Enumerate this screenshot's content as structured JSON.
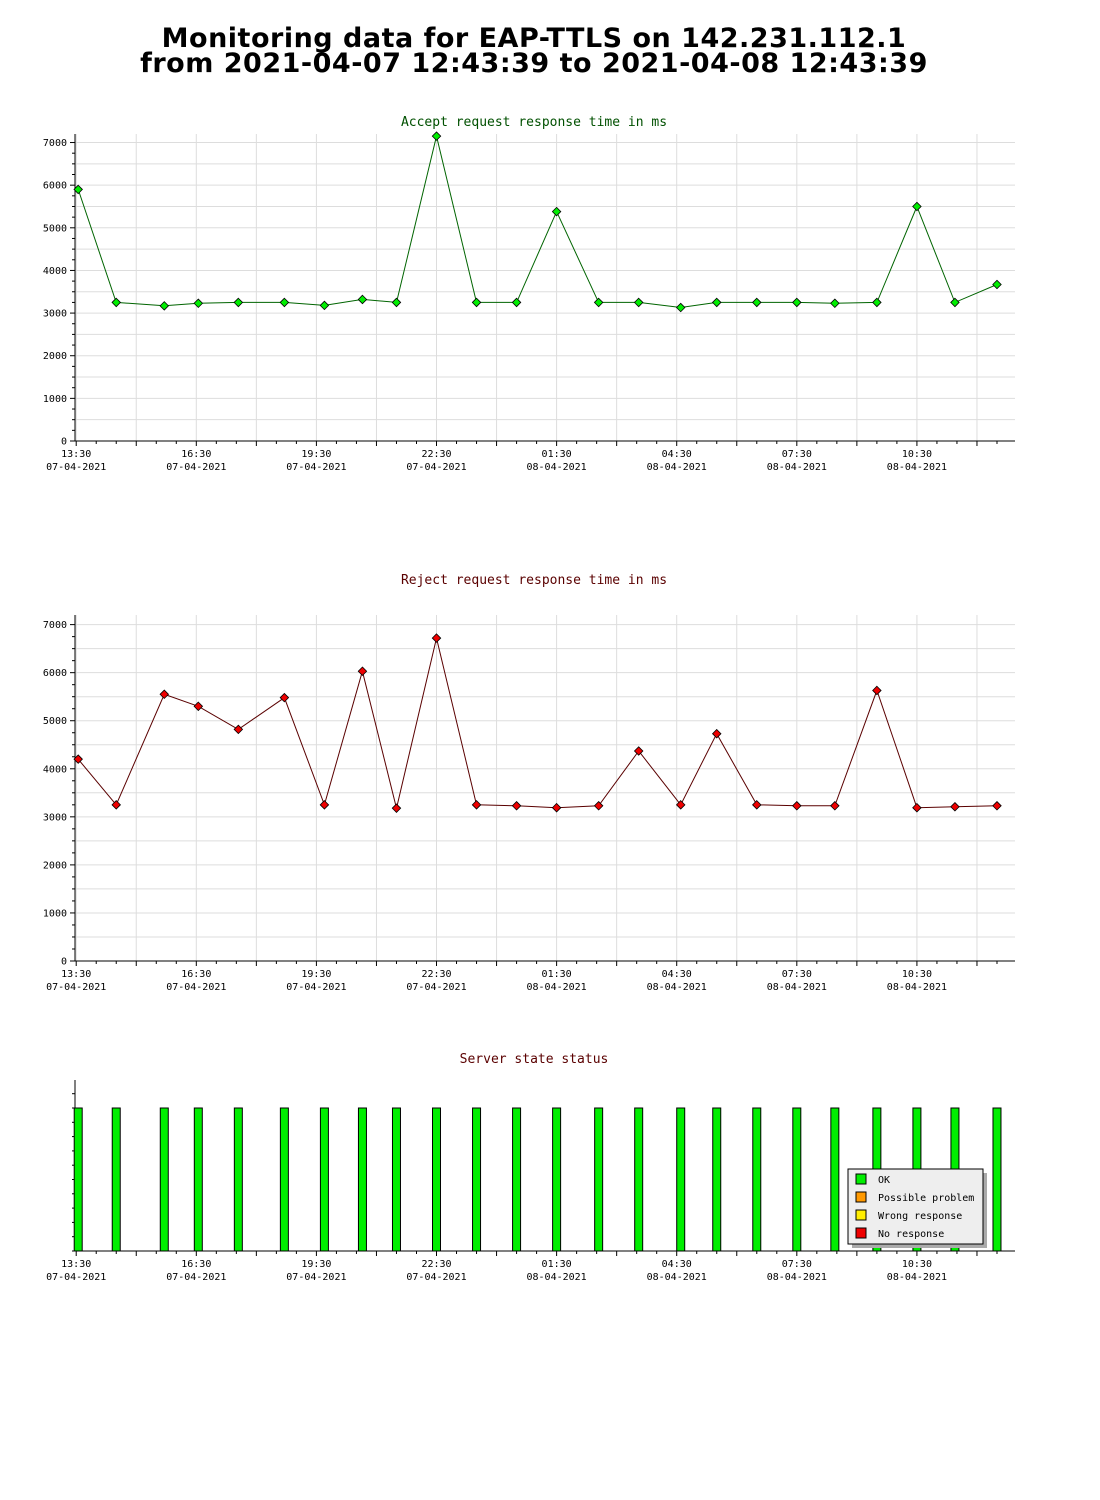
{
  "header": {
    "line1": "Monitoring data for EAP-TTLS on 142.231.112.1",
    "line2": "from 2021-04-07 12:43:39 to 2021-04-08 12:43:39"
  },
  "colors": {
    "accept_line": "#006400",
    "accept_marker": "#00ee00",
    "reject_line": "#5a0000",
    "reject_marker": "#ee0000",
    "status_bar": "#00ee00",
    "grid": "#dddddd",
    "accept_title": "#005000",
    "reject_title": "#5a0000"
  },
  "x_ticks": [
    {
      "time": "13:30",
      "date": "07-04-2021",
      "hours": 0
    },
    {
      "time": "16:30",
      "date": "07-04-2021",
      "hours": 3
    },
    {
      "time": "19:30",
      "date": "07-04-2021",
      "hours": 6
    },
    {
      "time": "22:30",
      "date": "07-04-2021",
      "hours": 9
    },
    {
      "time": "01:30",
      "date": "08-04-2021",
      "hours": 12
    },
    {
      "time": "04:30",
      "date": "08-04-2021",
      "hours": 15
    },
    {
      "time": "07:30",
      "date": "08-04-2021",
      "hours": 18
    },
    {
      "time": "10:30",
      "date": "08-04-2021",
      "hours": 21
    }
  ],
  "chart_data": [
    {
      "type": "line",
      "title": "Accept request response time in ms",
      "xlabel": "",
      "ylabel": "",
      "ylim": [
        0,
        7200
      ],
      "xlim_hours_from_1330": [
        -0.03,
        23.45
      ],
      "y_ticks": [
        0,
        1000,
        2000,
        3000,
        4000,
        5000,
        6000,
        7000
      ],
      "grid": true,
      "x_hours_from_1330": [
        0.05,
        1.0,
        2.2,
        3.05,
        4.05,
        5.2,
        6.2,
        7.15,
        8.0,
        9.0,
        10.0,
        11.0,
        12.0,
        13.05,
        14.05,
        15.1,
        16.0,
        17.0,
        18.0,
        18.95,
        20.0,
        21.0,
        21.95,
        23.0
      ],
      "series": [
        {
          "values": [
            5900,
            3250,
            3170,
            3230,
            3250,
            3250,
            3180,
            3320,
            3250,
            7150,
            3250,
            3250,
            5380,
            3250,
            3250,
            3130,
            3250,
            3250,
            3250,
            3230,
            3250,
            5500,
            3250,
            3670
          ]
        }
      ]
    },
    {
      "type": "line",
      "title": "Reject request response time in ms",
      "xlabel": "",
      "ylabel": "",
      "ylim": [
        0,
        7200
      ],
      "xlim_hours_from_1330": [
        -0.03,
        23.45
      ],
      "y_ticks": [
        0,
        1000,
        2000,
        3000,
        4000,
        5000,
        6000,
        7000
      ],
      "grid": true,
      "x_hours_from_1330": [
        0.05,
        1.0,
        2.2,
        3.05,
        4.05,
        5.2,
        6.2,
        7.15,
        8.0,
        9.0,
        10.0,
        11.0,
        12.0,
        13.05,
        14.05,
        15.1,
        16.0,
        17.0,
        18.0,
        18.95,
        20.0,
        21.0,
        21.95,
        23.0
      ],
      "series": [
        {
          "values": [
            4200,
            3250,
            5550,
            5300,
            4820,
            5480,
            3250,
            6030,
            3180,
            6720,
            3250,
            3230,
            3190,
            3230,
            4370,
            3250,
            4730,
            3250,
            3230,
            3230,
            5630,
            3190,
            3210,
            3230
          ]
        }
      ]
    },
    {
      "type": "bar",
      "title": "Server state status",
      "xlabel": "",
      "ylabel": "",
      "x_hours_from_1330": [
        0.05,
        1.0,
        2.2,
        3.05,
        4.05,
        5.2,
        6.2,
        7.15,
        8.0,
        9.0,
        10.0,
        11.0,
        12.0,
        13.05,
        14.05,
        15.1,
        16.0,
        17.0,
        18.0,
        18.95,
        20.0,
        21.0,
        21.95,
        23.0
      ],
      "series": [
        {
          "name": "OK",
          "values": [
            1,
            1,
            1,
            1,
            1,
            1,
            1,
            1,
            1,
            1,
            1,
            1,
            1,
            1,
            1,
            1,
            1,
            1,
            1,
            1,
            1,
            1,
            1,
            1
          ]
        }
      ],
      "legend_position": "bottom-right",
      "legend": [
        {
          "label": "OK",
          "color": "#00ee00"
        },
        {
          "label": "Possible problem",
          "color": "#ff9900"
        },
        {
          "label": "Wrong response",
          "color": "#ffee00"
        },
        {
          "label": "No response",
          "color": "#ee0000"
        }
      ]
    }
  ]
}
